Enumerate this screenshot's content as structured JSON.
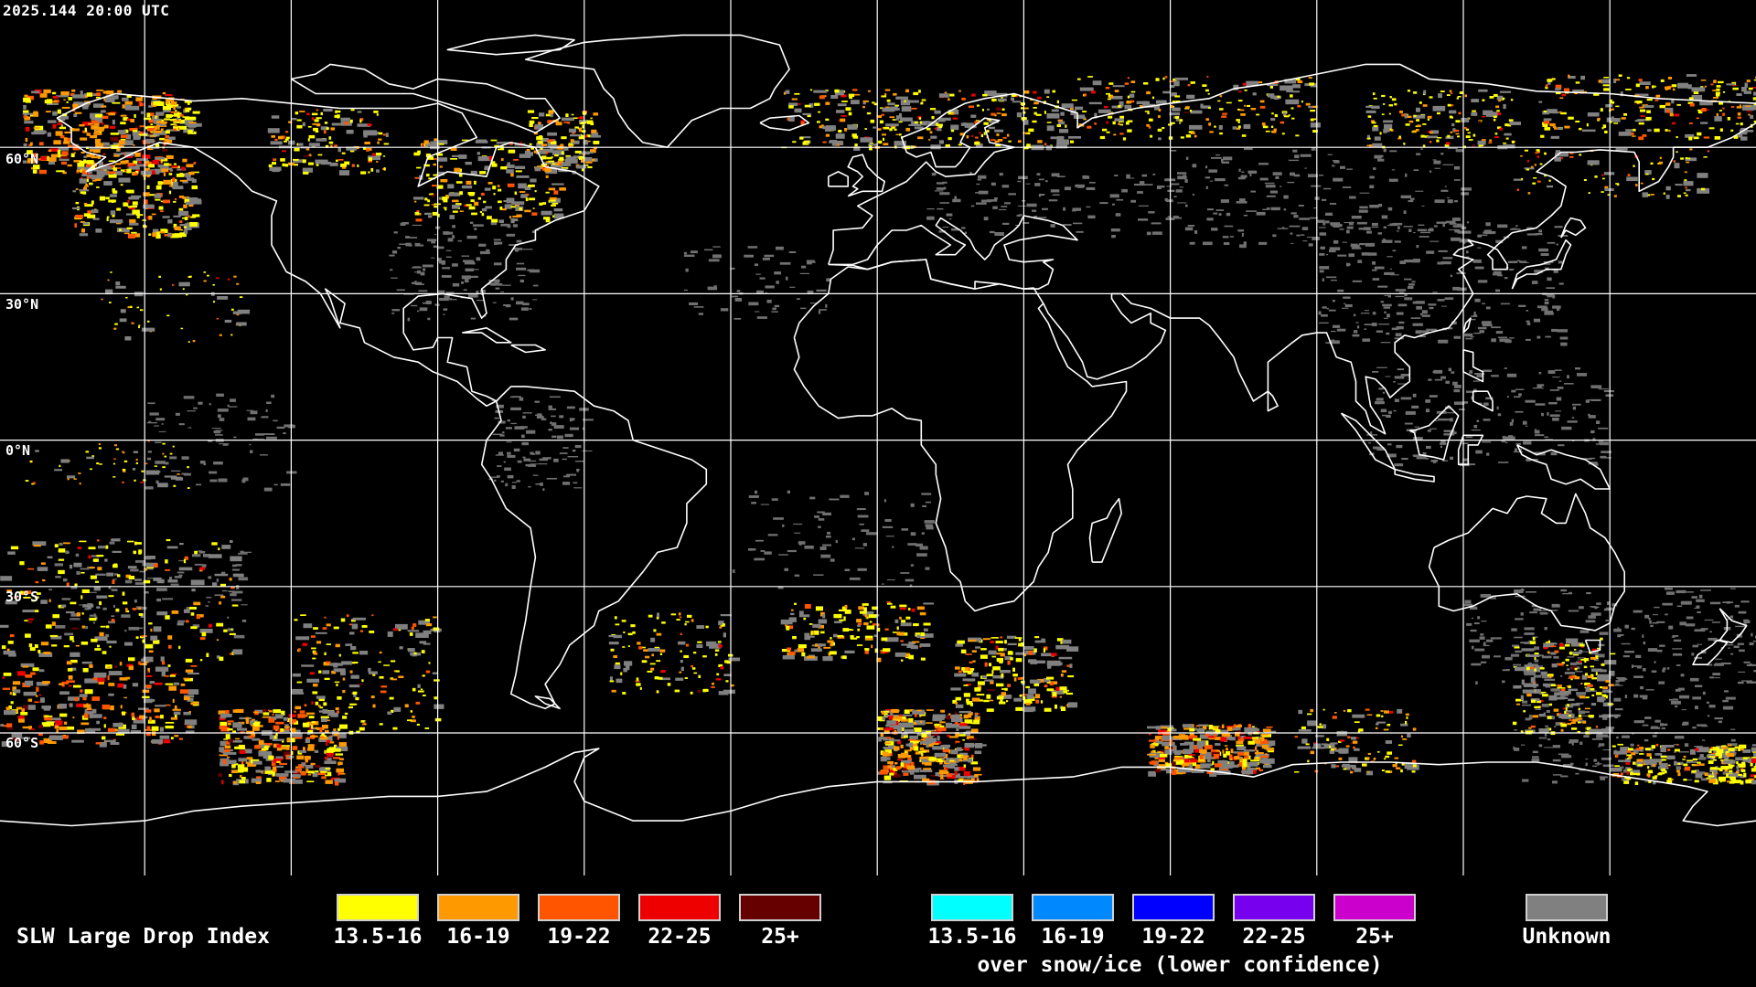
{
  "timestamp": "2025.144 20:00 UTC",
  "lat_labels": [
    "60°N",
    "30°N",
    "0°N",
    "30°S",
    "60°S"
  ],
  "legend": {
    "title": "SLW Large Drop Index",
    "primary": [
      {
        "label": "13.5-16",
        "color": "#ffff00"
      },
      {
        "label": "16-19",
        "color": "#ff9900"
      },
      {
        "label": "19-22",
        "color": "#ff5500"
      },
      {
        "label": "22-25",
        "color": "#ee0000"
      },
      {
        "label": "25+",
        "color": "#660000"
      }
    ],
    "snow_ice": [
      {
        "label": "13.5-16",
        "color": "#00ffff"
      },
      {
        "label": "16-19",
        "color": "#0088ff"
      },
      {
        "label": "19-22",
        "color": "#0000ff"
      },
      {
        "label": "22-25",
        "color": "#7700ee"
      },
      {
        "label": "25+",
        "color": "#cc00cc"
      }
    ],
    "snow_ice_caption": "over snow/ice (lower confidence)",
    "unknown": {
      "label": "Unknown",
      "color": "#808080"
    }
  }
}
